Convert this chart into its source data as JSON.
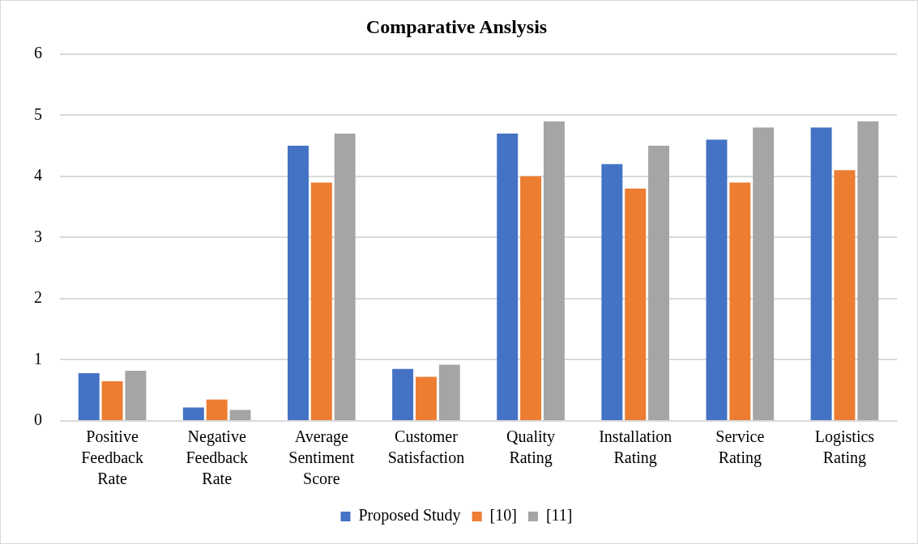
{
  "chart_data": {
    "type": "bar",
    "title": "Comparative Anslysis",
    "categories": [
      "Positive Feedback Rate",
      "Negative Feedback Rate",
      "Average Sentiment Score",
      "Customer Satisfaction",
      "Quality Rating",
      "Installation Rating",
      "Service Rating",
      "Logistics Rating"
    ],
    "series": [
      {
        "name": "Proposed Study",
        "color": "#4472c4",
        "values": [
          0.78,
          0.22,
          4.5,
          0.85,
          4.7,
          4.2,
          4.6,
          4.8
        ]
      },
      {
        "name": "[10]",
        "color": "#ed7d31",
        "values": [
          0.65,
          0.35,
          3.9,
          0.72,
          4.0,
          3.8,
          3.9,
          4.1
        ]
      },
      {
        "name": "[11]",
        "color": "#a5a5a5",
        "values": [
          0.82,
          0.18,
          4.7,
          0.92,
          4.9,
          4.5,
          4.8,
          4.9
        ]
      }
    ],
    "ylim": [
      0,
      6
    ],
    "yticks": [
      0,
      1,
      2,
      3,
      4,
      5,
      6
    ],
    "grid": "y",
    "legend": "bottom"
  }
}
